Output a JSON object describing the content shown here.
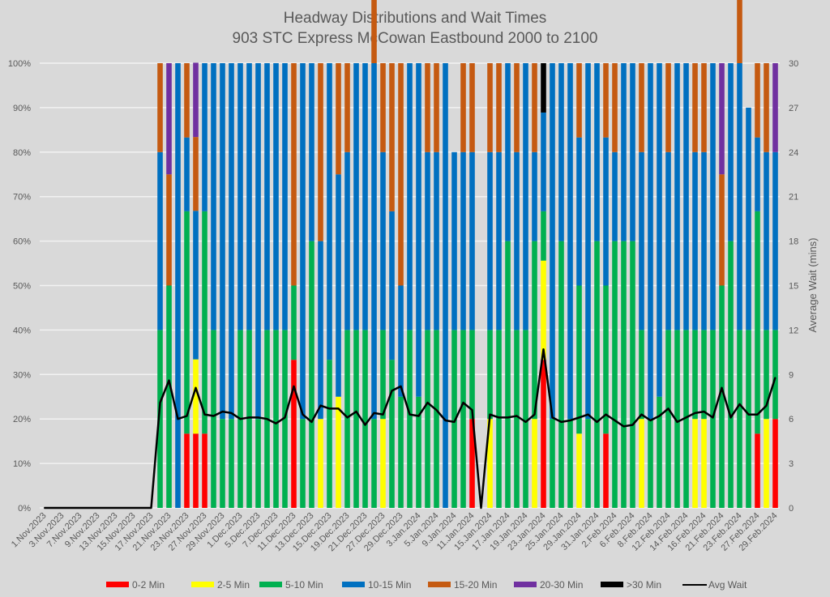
{
  "chart_data": {
    "type": "bar",
    "subtype": "stacked-100-with-line",
    "title": "Headway Distributions and Wait Times",
    "subtitle": "903 STC Express  McCowan Eastbound 2000 to 2100",
    "ylabel": "",
    "y2label": "Average Wait (mins)",
    "ylim": [
      0,
      100
    ],
    "y2lim": [
      0,
      30
    ],
    "yticks": [
      "0%",
      "10%",
      "20%",
      "30%",
      "40%",
      "50%",
      "60%",
      "70%",
      "80%",
      "90%",
      "100%"
    ],
    "y2ticks": [
      "0",
      "3",
      "6",
      "9",
      "12",
      "15",
      "18",
      "21",
      "24",
      "27",
      "30"
    ],
    "grid": true,
    "legend_position": "bottom",
    "categories": [
      "1.Nov.2023",
      "",
      "3.Nov.2023",
      "",
      "7.Nov.2023",
      "",
      "9.Nov.2023",
      "",
      "13.Nov.2023",
      "",
      "15.Nov.2023",
      "",
      "17.Nov.2023",
      "",
      "21.Nov.2023",
      "",
      "23.Nov.2023",
      "",
      "27.Nov.2023",
      "",
      "29.Nov.2023",
      "",
      "1.Dec.2023",
      "",
      "5.Dec.2023",
      "",
      "7.Dec.2023",
      "",
      "11.Dec.2023",
      "",
      "13.Dec.2023",
      "",
      "15.Dec.2023",
      "",
      "19.Dec.2023",
      "",
      "21.Dec.2023",
      "",
      "27.Dec.2023",
      "",
      "29.Dec.2023",
      "",
      "3.Jan.2024",
      "",
      "5.Jan.2024",
      "",
      "9.Jan.2024",
      "",
      "11.Jan.2024",
      "",
      "15.Jan.2024",
      "",
      "17.Jan.2024",
      "",
      "19.Jan.2024",
      "",
      "23.Jan.2024",
      "",
      "25.Jan.2024",
      "",
      "29.Jan.2024",
      "",
      "31.Jan.2024",
      "",
      "2.Feb.2024",
      "",
      "6.Feb.2024",
      "",
      "8.Feb.2024",
      "",
      "12.Feb.2024",
      "",
      "14.Feb.2024",
      "",
      "16.Feb.2024",
      "",
      "21.Feb.2024",
      "",
      "23.Feb.2024",
      "",
      "27.Feb.2024",
      "",
      "29.Feb.2024"
    ],
    "series": [
      {
        "name": "0-2 Min",
        "color": "#ff0000",
        "values": [
          0,
          0,
          0,
          0,
          0,
          0,
          0,
          0,
          0,
          0,
          0,
          0,
          0,
          0,
          0,
          0,
          16.7,
          16.7,
          16.7,
          0,
          0,
          0,
          0,
          0,
          0,
          0,
          0,
          0,
          33.3,
          0,
          0,
          0,
          0,
          0,
          0,
          0,
          0,
          0,
          0,
          0,
          0,
          0,
          0,
          0,
          0,
          0,
          0,
          0,
          20,
          0,
          0,
          0,
          0,
          0,
          0,
          0,
          33.3,
          0,
          0,
          0,
          0,
          0,
          0,
          16.7,
          0,
          0,
          0,
          0,
          0,
          0,
          0,
          0,
          0,
          0,
          0,
          0,
          0,
          0,
          0,
          0,
          16.7,
          0,
          20
        ]
      },
      {
        "name": "2-5 Min",
        "color": "#ffff00",
        "values": [
          0,
          0,
          0,
          0,
          0,
          0,
          0,
          0,
          0,
          0,
          0,
          0,
          0,
          0,
          0,
          0,
          0,
          16.7,
          0,
          0,
          0,
          0,
          0,
          0,
          0,
          0,
          0,
          0,
          0,
          0,
          0,
          20,
          0,
          25,
          0,
          0,
          0,
          0,
          20,
          0,
          0,
          0,
          0,
          0,
          0,
          0,
          0,
          0,
          0,
          0,
          20,
          0,
          0,
          0,
          0,
          20,
          22.3,
          0,
          0,
          0,
          16.7,
          0,
          0,
          0,
          0,
          0,
          0,
          20,
          0,
          0,
          0,
          0,
          0,
          20,
          20,
          0,
          0,
          0,
          0,
          0,
          0,
          20,
          0
        ]
      },
      {
        "name": "5-10 Min",
        "color": "#00b050",
        "values": [
          0,
          0,
          0,
          0,
          0,
          0,
          0,
          0,
          0,
          0,
          0,
          0,
          0,
          40,
          50,
          0,
          50,
          0,
          50,
          40,
          20,
          20,
          40,
          40,
          20,
          40,
          40,
          40,
          16.7,
          20,
          60,
          0,
          33.3,
          0,
          40,
          40,
          40,
          20,
          20,
          33.3,
          25,
          40,
          25,
          40,
          40,
          0,
          40,
          40,
          20,
          0,
          20,
          40,
          60,
          40,
          40,
          40,
          11.1,
          20,
          60,
          20,
          33.3,
          20,
          60,
          33.3,
          60,
          60,
          60,
          20,
          20,
          25,
          40,
          40,
          40,
          20,
          20,
          40,
          50,
          60,
          40,
          40,
          50,
          20,
          20
        ]
      },
      {
        "name": "10-15 Min",
        "color": "#0070c0",
        "values": [
          0,
          0,
          0,
          0,
          0,
          0,
          0,
          0,
          0,
          0,
          0,
          0,
          0,
          40,
          0,
          100,
          16.6,
          33.4,
          33.3,
          60,
          80,
          80,
          60,
          60,
          80,
          60,
          60,
          60,
          0,
          80,
          40,
          40,
          66.7,
          50,
          40,
          60,
          60,
          80,
          40,
          33.4,
          25,
          60,
          75,
          40,
          40,
          100,
          40,
          40,
          40,
          0,
          40,
          40,
          40,
          40,
          60,
          20,
          22.2,
          80,
          40,
          80,
          33.3,
          80,
          40,
          33.3,
          20,
          40,
          40,
          40,
          80,
          75,
          40,
          60,
          60,
          40,
          40,
          60,
          0,
          40,
          60,
          50,
          16.6,
          40,
          40
        ]
      },
      {
        "name": "15-20 Min",
        "color": "#c55a11",
        "values": [
          0,
          0,
          0,
          0,
          0,
          0,
          0,
          0,
          0,
          0,
          0,
          0,
          0,
          20,
          25,
          0,
          16.7,
          16.6,
          0,
          0,
          0,
          0,
          0,
          0,
          0,
          0,
          0,
          0,
          50,
          0,
          0,
          40,
          0,
          25,
          20,
          0,
          0,
          20,
          20,
          33.3,
          50,
          0,
          0,
          20,
          20,
          0,
          0,
          20,
          20,
          0,
          20,
          20,
          0,
          20,
          0,
          20,
          0,
          0,
          0,
          0,
          16.7,
          0,
          0,
          16.7,
          20,
          0,
          0,
          20,
          0,
          0,
          20,
          0,
          0,
          20,
          20,
          0,
          25,
          0,
          20,
          0,
          16.7,
          20,
          0
        ]
      },
      {
        "name": "20-30 Min",
        "color": "#7030a0",
        "values": [
          0,
          0,
          0,
          0,
          0,
          0,
          0,
          0,
          0,
          0,
          0,
          0,
          0,
          0,
          25,
          0,
          0,
          16.7,
          0,
          0,
          0,
          0,
          0,
          0,
          0,
          0,
          0,
          0,
          0,
          0,
          0,
          0,
          0,
          0,
          0,
          0,
          0,
          0,
          0,
          0,
          0,
          0,
          0,
          0,
          0,
          0,
          0,
          0,
          0,
          0,
          0,
          0,
          0,
          0,
          0,
          0,
          0,
          0,
          0,
          0,
          0,
          0,
          0,
          0,
          0,
          0,
          0,
          0,
          0,
          0,
          0,
          0,
          0,
          0,
          0,
          0,
          25,
          0,
          0,
          0,
          0,
          0,
          20
        ]
      },
      {
        "name": ">30 Min",
        "color": "#000000",
        "values": [
          0,
          0,
          0,
          0,
          0,
          0,
          0,
          0,
          0,
          0,
          0,
          0,
          0,
          0,
          0,
          0,
          0,
          0,
          0,
          0,
          0,
          0,
          0,
          0,
          0,
          0,
          0,
          0,
          0,
          0,
          0,
          0,
          0,
          0,
          0,
          0,
          0,
          0,
          0,
          0,
          0,
          0,
          0,
          0,
          0,
          0,
          0,
          0,
          0,
          0,
          0,
          0,
          0,
          0,
          0,
          0,
          11.1,
          0,
          0,
          0,
          0,
          0,
          0,
          0,
          0,
          0,
          0,
          0,
          0,
          0,
          0,
          0,
          0,
          0,
          0,
          0,
          0,
          0,
          0,
          0,
          0,
          0,
          0
        ]
      }
    ],
    "line": {
      "name": "Avg Wait",
      "color": "#000000",
      "axis": "right",
      "values": [
        0,
        0,
        0,
        0,
        0,
        0,
        0,
        0,
        0,
        0,
        0,
        0,
        0,
        7.1,
        8.6,
        6.0,
        6.2,
        8.1,
        6.3,
        6.2,
        6.5,
        6.4,
        6.0,
        6.1,
        6.1,
        6.0,
        5.7,
        6.1,
        8.2,
        6.3,
        5.8,
        6.9,
        6.7,
        6.7,
        6.1,
        6.5,
        5.6,
        6.4,
        6.3,
        7.9,
        8.2,
        6.3,
        6.2,
        7.1,
        6.6,
        5.9,
        5.8,
        7.1,
        6.6,
        0,
        6.3,
        6.1,
        6.1,
        6.2,
        5.8,
        6.3,
        10.7,
        6.1,
        5.8,
        5.9,
        6.1,
        6.3,
        5.8,
        6.3,
        5.9,
        5.5,
        5.6,
        6.3,
        5.9,
        6.2,
        6.7,
        5.8,
        6.1,
        6.4,
        6.5,
        6.1,
        8.1,
        6.1,
        7.0,
        6.3,
        6.3,
        6.9,
        8.8
      ]
    }
  }
}
